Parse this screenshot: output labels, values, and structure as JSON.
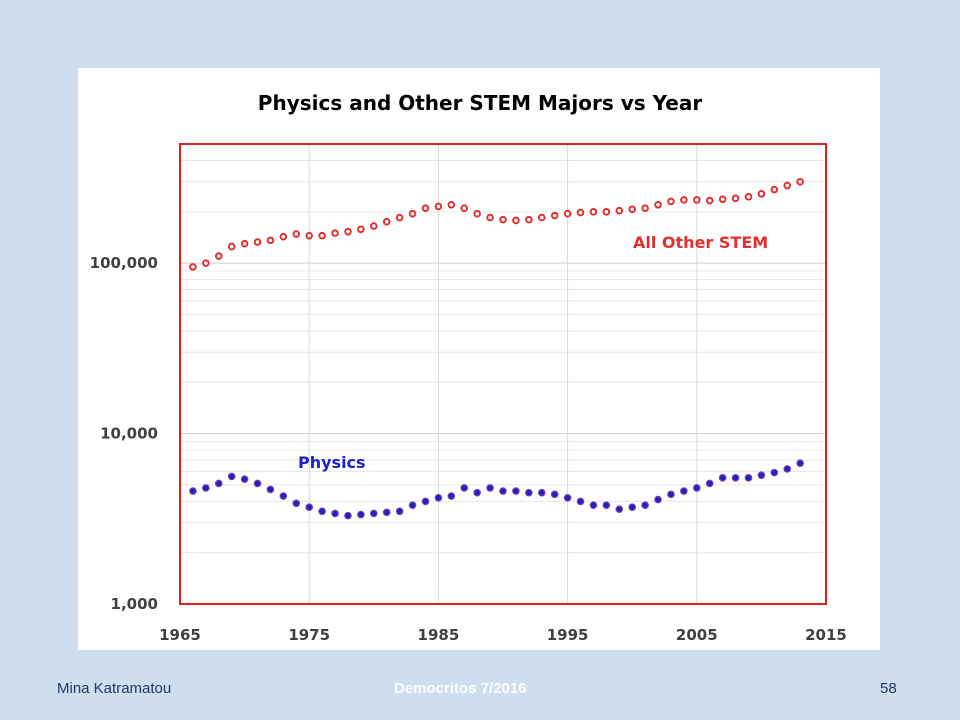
{
  "footer": {
    "author": "Mina Katramatou",
    "event": "Democritos 7/2016",
    "page": "58"
  },
  "colors": {
    "stem": "#e03030",
    "physics": "#2020c8",
    "physics_outline": "#7a3fa0",
    "frame": "#e02020",
    "background": "#cfdeee"
  },
  "chart_data": {
    "type": "scatter",
    "title": "Physics and Other STEM Majors vs Year",
    "xlabel": "",
    "ylabel": "",
    "xlim": [
      1965,
      2015
    ],
    "ylim": [
      1000,
      500000
    ],
    "yscale": "log",
    "xticks": [
      1965,
      1975,
      1985,
      1995,
      2005,
      2015
    ],
    "yticks": [
      {
        "value": 1000,
        "label": "1,000"
      },
      {
        "value": 10000,
        "label": "10,000"
      },
      {
        "value": 100000,
        "label": "100,000"
      }
    ],
    "grid": true,
    "series": [
      {
        "name": "All Other STEM",
        "label_text": "All Other STEM",
        "x": [
          1966,
          1967,
          1968,
          1969,
          1970,
          1971,
          1972,
          1973,
          1974,
          1975,
          1976,
          1977,
          1978,
          1979,
          1980,
          1981,
          1982,
          1983,
          1984,
          1985,
          1986,
          1987,
          1988,
          1989,
          1990,
          1991,
          1992,
          1993,
          1994,
          1995,
          1996,
          1997,
          1998,
          1999,
          2000,
          2001,
          2002,
          2003,
          2004,
          2005,
          2006,
          2007,
          2008,
          2009,
          2010,
          2011,
          2012,
          2013
        ],
        "y": [
          95000,
          100000,
          110000,
          125000,
          130000,
          133000,
          136000,
          143000,
          148000,
          145000,
          145000,
          150000,
          153000,
          158000,
          165000,
          175000,
          185000,
          195000,
          210000,
          215000,
          220000,
          210000,
          195000,
          185000,
          180000,
          178000,
          180000,
          185000,
          190000,
          195000,
          198000,
          200000,
          200000,
          203000,
          207000,
          210000,
          220000,
          230000,
          235000,
          235000,
          233000,
          237000,
          240000,
          245000,
          255000,
          270000,
          285000,
          300000
        ]
      },
      {
        "name": "Physics",
        "label_text": "Physics",
        "x": [
          1966,
          1967,
          1968,
          1969,
          1970,
          1971,
          1972,
          1973,
          1974,
          1975,
          1976,
          1977,
          1978,
          1979,
          1980,
          1981,
          1982,
          1983,
          1984,
          1985,
          1986,
          1987,
          1988,
          1989,
          1990,
          1991,
          1992,
          1993,
          1994,
          1995,
          1996,
          1997,
          1998,
          1999,
          2000,
          2001,
          2002,
          2003,
          2004,
          2005,
          2006,
          2007,
          2008,
          2009,
          2010,
          2011,
          2012,
          2013
        ],
        "y": [
          4600,
          4800,
          5100,
          5600,
          5400,
          5100,
          4700,
          4300,
          3900,
          3700,
          3500,
          3400,
          3300,
          3350,
          3400,
          3450,
          3500,
          3800,
          4000,
          4200,
          4300,
          4800,
          4500,
          4800,
          4600,
          4600,
          4500,
          4500,
          4400,
          4200,
          4000,
          3800,
          3800,
          3600,
          3700,
          3800,
          4100,
          4400,
          4600,
          4800,
          5100,
          5500,
          5500,
          5500,
          5700,
          5900,
          6200,
          6700
        ]
      }
    ]
  }
}
